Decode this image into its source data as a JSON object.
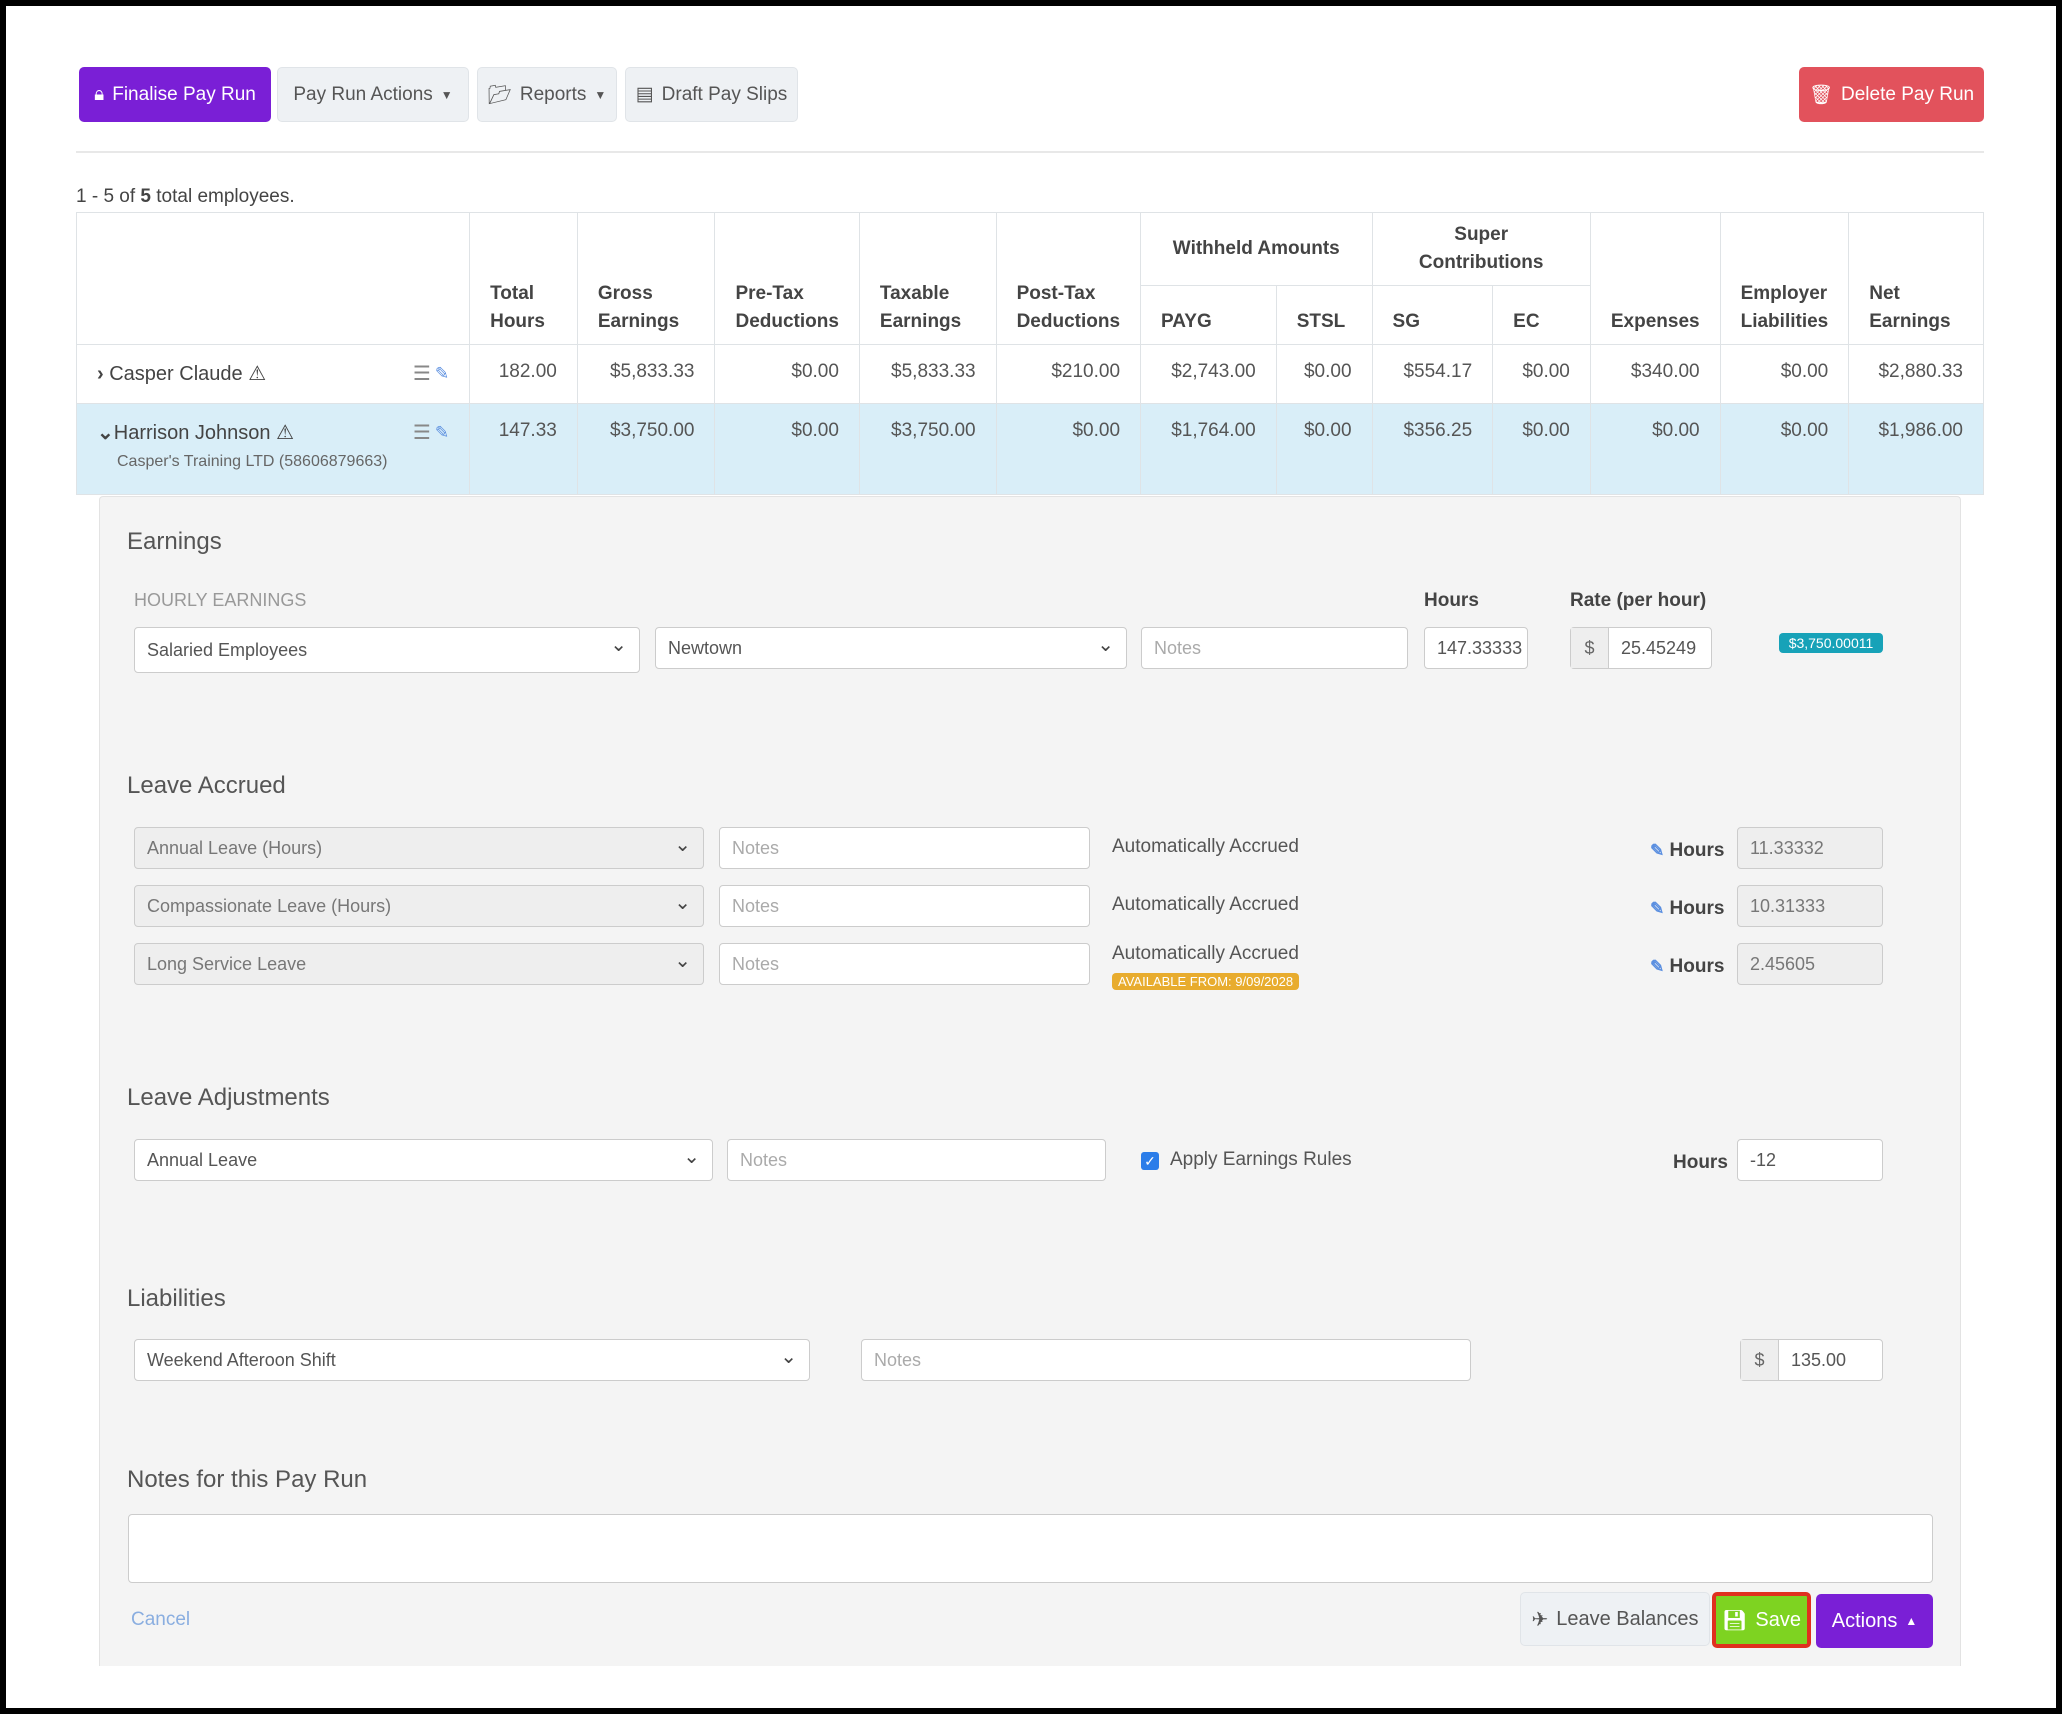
{
  "toolbar": {
    "finalise": "Finalise Pay Run",
    "pay_run_actions": "Pay Run Actions",
    "reports": "Reports",
    "draft_pay_slips": "Draft Pay Slips",
    "delete": "Delete Pay Run"
  },
  "summary": {
    "prefix": "1 - 5 of ",
    "count": "5",
    "suffix": " total employees."
  },
  "table": {
    "headers": {
      "total_hours": "Total Hours",
      "gross": "Gross Earnings",
      "pretax": "Pre-Tax Deductions",
      "taxable": "Taxable Earnings",
      "posttax": "Post-Tax Deductions",
      "withheld": "Withheld Amounts",
      "payg": "PAYG",
      "stsl": "STSL",
      "super": "Super Contributions",
      "sg": "SG",
      "ec": "EC",
      "expenses": "Expenses",
      "employer": "Employer Liabilities",
      "net": "Net Earnings"
    },
    "rows": [
      {
        "name": "Casper Claude",
        "values": [
          "182.00",
          "$5,833.33",
          "$0.00",
          "$5,833.33",
          "$210.00",
          "$2,743.00",
          "$0.00",
          "$554.17",
          "$0.00",
          "$340.00",
          "$0.00",
          "$2,880.33"
        ]
      },
      {
        "name": "Harrison Johnson",
        "company": "Casper's Training LTD (58606879663)",
        "values": [
          "147.33",
          "$3,750.00",
          "$0.00",
          "$3,750.00",
          "$0.00",
          "$1,764.00",
          "$0.00",
          "$356.25",
          "$0.00",
          "$0.00",
          "$0.00",
          "$1,986.00"
        ]
      }
    ]
  },
  "earnings": {
    "title": "Earnings",
    "section": "HOURLY EARNINGS",
    "hours_label": "Hours",
    "rate_label": "Rate (per hour)",
    "category": "Salaried Employees",
    "location": "Newtown",
    "notes_placeholder": "Notes",
    "hours": "147.33333",
    "currency": "$",
    "rate": "25.45249",
    "total": "$3,750.00011"
  },
  "leave_accrued": {
    "title": "Leave Accrued",
    "rows": [
      {
        "type": "Annual Leave (Hours)",
        "notes": "Notes",
        "status": "Automatically Accrued",
        "hours_label": "Hours",
        "hours": "11.33332"
      },
      {
        "type": "Compassionate Leave (Hours)",
        "notes": "Notes",
        "status": "Automatically Accrued",
        "hours_label": "Hours",
        "hours": "10.31333"
      },
      {
        "type": "Long Service Leave",
        "notes": "Notes",
        "status": "Automatically Accrued",
        "badge": "AVAILABLE FROM: 9/09/2028",
        "hours_label": "Hours",
        "hours": "2.45605"
      }
    ]
  },
  "leave_adjustments": {
    "title": "Leave Adjustments",
    "type": "Annual Leave",
    "notes": "Notes",
    "apply_rules": "Apply Earnings Rules",
    "hours_label": "Hours",
    "hours": "-12"
  },
  "liabilities": {
    "title": "Liabilities",
    "type": "Weekend Afteroon Shift",
    "notes": "Notes",
    "currency": "$",
    "amount": "135.00"
  },
  "notes": {
    "title": "Notes for this Pay Run",
    "value": ""
  },
  "footer": {
    "cancel": "Cancel",
    "leave_balances": "Leave Balances",
    "save": "Save",
    "actions": "Actions"
  },
  "colors": {
    "purple": "#7a1fd6",
    "red": "#e2525c",
    "green": "#7ed321",
    "highlight": "#d9eef8",
    "teal": "#17a2b8",
    "amber": "#e8ac2e"
  }
}
